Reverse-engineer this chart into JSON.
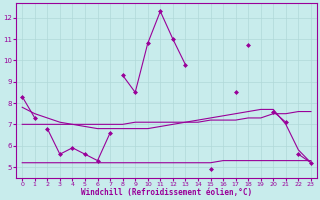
{
  "xlabel": "Windchill (Refroidissement éolien,°C)",
  "background_color": "#c8ecec",
  "grid_color": "#b0d8d8",
  "line_color": "#990099",
  "x_values": [
    0,
    1,
    2,
    3,
    4,
    5,
    6,
    7,
    8,
    9,
    10,
    11,
    12,
    13,
    14,
    15,
    16,
    17,
    18,
    19,
    20,
    21,
    22,
    23
  ],
  "main_line_y": [
    8.3,
    7.3,
    null,
    null,
    null,
    null,
    null,
    null,
    9.3,
    8.5,
    10.8,
    12.3,
    11.0,
    9.8,
    null,
    null,
    null,
    null,
    10.7,
    null,
    7.6,
    7.1,
    null,
    null
  ],
  "lower_line_y": [
    null,
    null,
    6.8,
    5.6,
    5.9,
    5.6,
    5.3,
    6.6,
    null,
    null,
    null,
    null,
    null,
    null,
    null,
    4.9,
    null,
    8.5,
    null,
    null,
    null,
    null,
    5.6,
    5.2
  ],
  "trend_flat_y": [
    7.0,
    7.0,
    7.0,
    7.0,
    7.0,
    7.0,
    7.0,
    7.0,
    7.0,
    7.1,
    7.1,
    7.1,
    7.1,
    7.1,
    7.1,
    7.2,
    7.2,
    7.2,
    7.3,
    7.3,
    7.5,
    7.5,
    7.6,
    7.6
  ],
  "trend_low_y": [
    5.2,
    5.2,
    5.2,
    5.2,
    5.2,
    5.2,
    5.2,
    5.2,
    5.2,
    5.2,
    5.2,
    5.2,
    5.2,
    5.2,
    5.2,
    5.2,
    5.3,
    5.3,
    5.3,
    5.3,
    5.3,
    5.3,
    5.3,
    5.3
  ],
  "trend_rise_y": [
    7.8,
    7.5,
    7.3,
    7.1,
    7.0,
    6.9,
    6.8,
    6.8,
    6.8,
    6.8,
    6.8,
    6.9,
    7.0,
    7.1,
    7.2,
    7.3,
    7.4,
    7.5,
    7.6,
    7.7,
    7.7,
    7.0,
    5.8,
    5.2
  ],
  "ylim": [
    4.5,
    12.7
  ],
  "yticks": [
    5,
    6,
    7,
    8,
    9,
    10,
    11,
    12
  ],
  "xlim": [
    -0.5,
    23.5
  ],
  "xticks": [
    0,
    1,
    2,
    3,
    4,
    5,
    6,
    7,
    8,
    9,
    10,
    11,
    12,
    13,
    14,
    15,
    16,
    17,
    18,
    19,
    20,
    21,
    22,
    23
  ],
  "figwidth": 3.2,
  "figheight": 2.0,
  "dpi": 100
}
